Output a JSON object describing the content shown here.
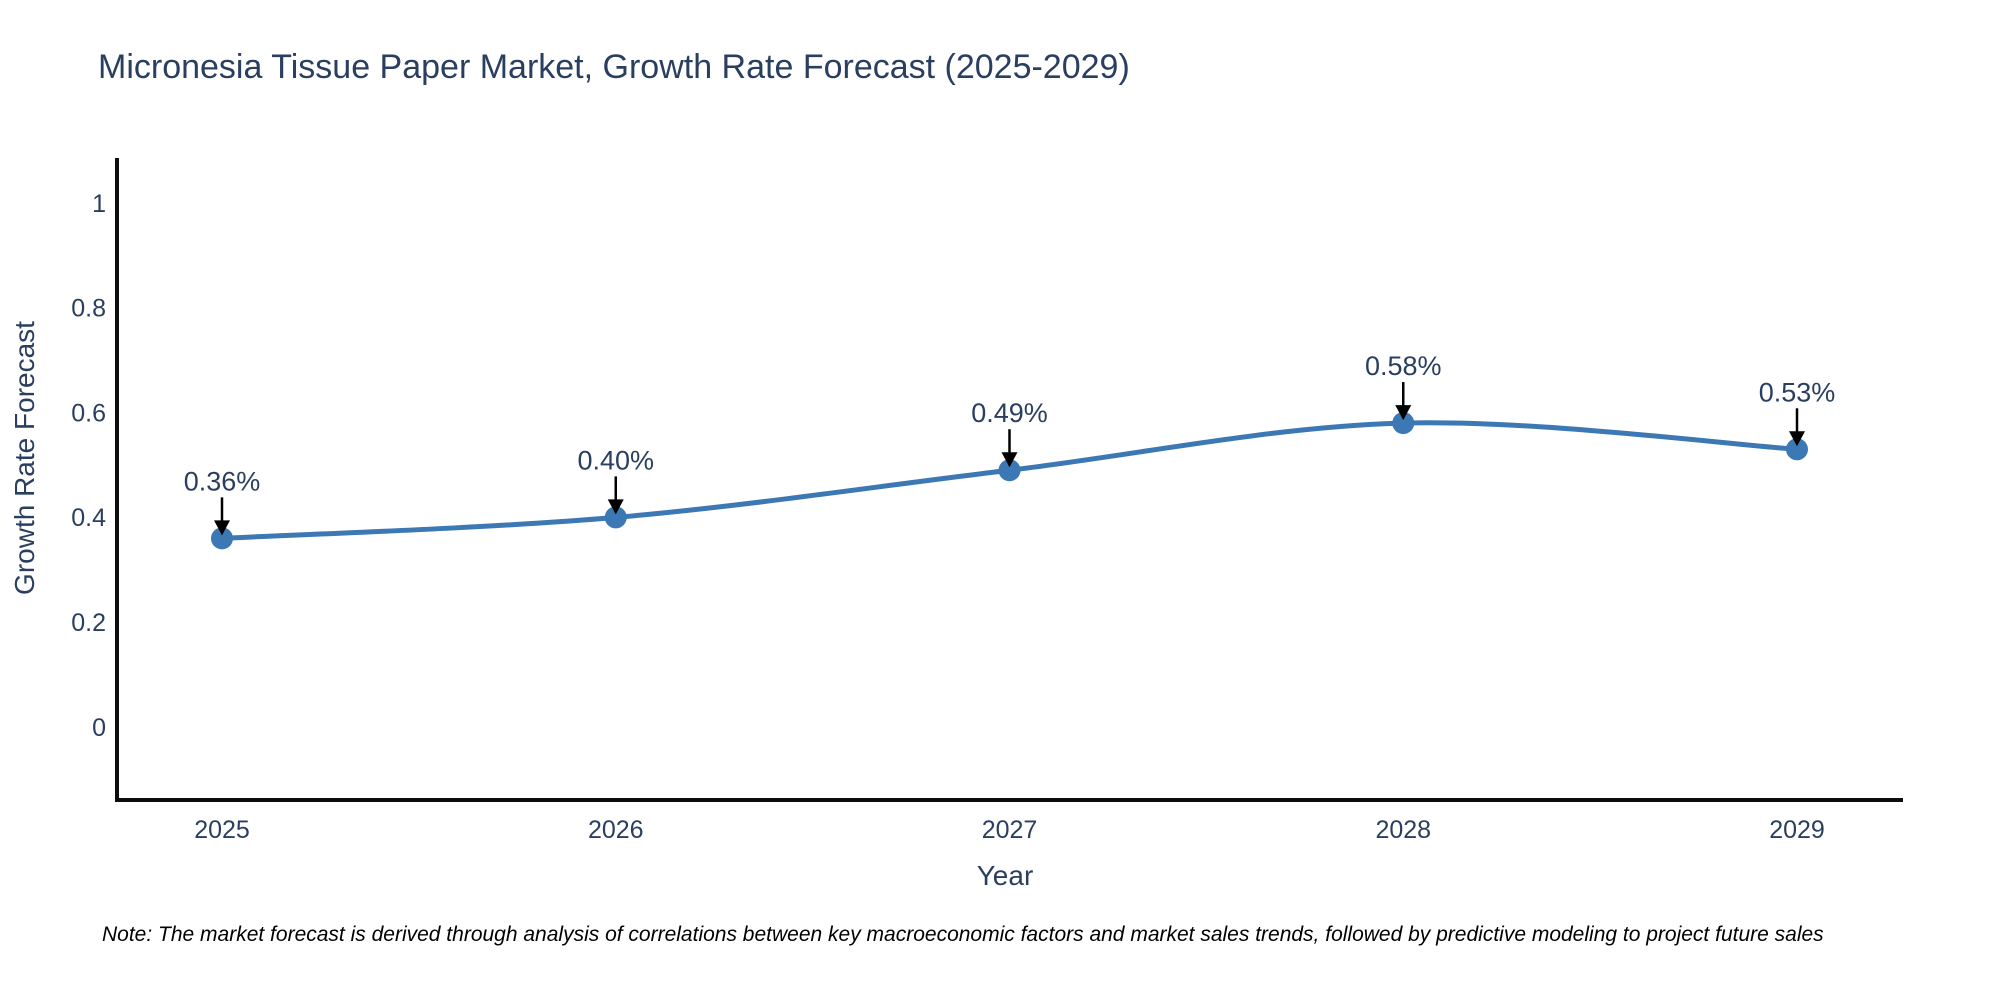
{
  "title": "Micronesia Tissue Paper Market, Growth Rate Forecast (2025-2029)",
  "footnote": "Note: The market forecast is derived through analysis of correlations between key macroeconomic factors and market sales trends, followed by predictive modeling to project future sales",
  "chart_data": {
    "type": "line",
    "title": "Micronesia Tissue Paper Market, Growth Rate Forecast (2025-2029)",
    "xlabel": "Year",
    "ylabel": "Growth Rate Forecast",
    "categories": [
      "2025",
      "2026",
      "2027",
      "2028",
      "2029"
    ],
    "series": [
      {
        "name": "Growth Rate Forecast",
        "values": [
          0.36,
          0.4,
          0.49,
          0.58,
          0.53
        ],
        "point_labels": [
          "0.36%",
          "0.40%",
          "0.49%",
          "0.58%",
          "0.53%"
        ]
      }
    ],
    "line_shape": "spline",
    "markers": true,
    "annotations_arrows": true,
    "yticks": [
      1,
      0.8,
      0.6,
      0.4,
      0.2,
      0
    ],
    "ytick_labels": [
      "1",
      "0.8",
      "0.6",
      "0.4",
      "0.2",
      "0"
    ],
    "ylim": [
      -0.14,
      1.08
    ],
    "grid": false,
    "legend_position": "none",
    "colors": {
      "line": "#3c78b4",
      "marker": "#3c78b4",
      "arrow": "#000000",
      "text": "#2a3f5f",
      "axis": "#0d0d0d",
      "background": "#ffffff"
    }
  }
}
